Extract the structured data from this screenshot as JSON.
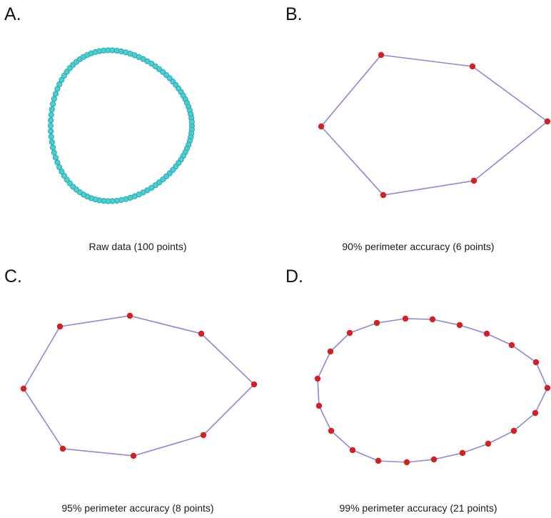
{
  "panels": [
    {
      "letter": "A.",
      "caption": "Raw data (100 points)",
      "points": 100
    },
    {
      "letter": "B.",
      "caption": "90% perimeter accuracy (6 points)",
      "points": 6
    },
    {
      "letter": "C.",
      "caption": "95% perimeter accuracy (8 points)",
      "points": 8
    },
    {
      "letter": "D.",
      "caption": "99% perimeter accuracy (21 points)",
      "points": 21
    }
  ],
  "colors": {
    "raw_point": "#4ad0d4",
    "raw_point_stroke": "#2aa7ad",
    "outline": "#8888d8",
    "vertex": "#d42020"
  }
}
